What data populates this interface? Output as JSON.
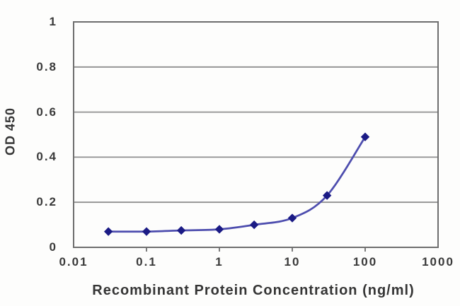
{
  "chart_data": {
    "type": "line",
    "x_scale": "log",
    "xlabel": "Recombinant Protein Concentration (ng/ml)",
    "ylabel": "OD 450",
    "series": [
      {
        "name": "OD 450",
        "x": [
          0.03,
          0.1,
          0.3,
          1,
          3,
          10,
          30,
          100
        ],
        "y": [
          0.07,
          0.07,
          0.075,
          0.08,
          0.1,
          0.13,
          0.23,
          0.49
        ]
      }
    ],
    "xlim": [
      0.01,
      1000
    ],
    "ylim": [
      0,
      1
    ],
    "x_ticks": [
      0.01,
      0.1,
      1,
      10,
      100,
      1000
    ],
    "x_tick_labels": [
      "0.01",
      "0.1",
      "1",
      "10",
      "100",
      "1000"
    ],
    "y_ticks": [
      0,
      0.2,
      0.4,
      0.6,
      0.8,
      1
    ],
    "y_tick_labels": [
      "0",
      "0.2",
      "0.4",
      "0.6",
      "0.8",
      "1"
    ],
    "grid": "horizontal",
    "legend_position": "none",
    "marker_shape": "diamond",
    "line_style": "smooth",
    "colors": {
      "line": "#4d4dae",
      "marker": "#1b1b85",
      "grid": "#8f8f8f",
      "border": "#6e6e6e",
      "text": "#3a3a3a",
      "background": "#fdfdfc"
    }
  }
}
